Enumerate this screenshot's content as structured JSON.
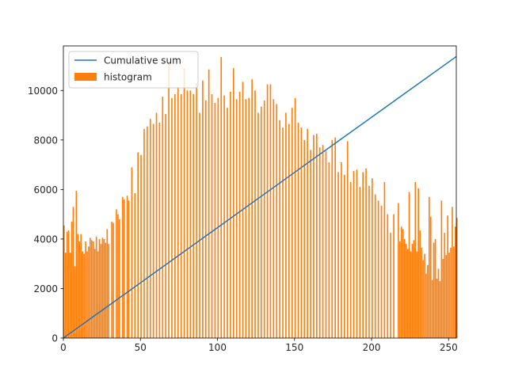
{
  "chart_data": {
    "type": "bar",
    "title": "",
    "xlabel": "",
    "ylabel": "",
    "xlim": [
      0,
      255
    ],
    "ylim": [
      0,
      11800
    ],
    "xticks": [
      0,
      50,
      100,
      150,
      200,
      250
    ],
    "yticks": [
      0,
      2000,
      4000,
      6000,
      8000,
      10000
    ],
    "legend_position": "top-left",
    "grid": false,
    "series": [
      {
        "name": "Cumulative sum",
        "type": "line",
        "color": "#1f77b4",
        "start": [
          0,
          0
        ],
        "end": [
          255,
          11370
        ]
      },
      {
        "name": "histogram",
        "type": "bar",
        "color": "#ff7f0e",
        "x_start": 0,
        "values": [
          4550,
          3450,
          4300,
          4350,
          3450,
          4700,
          5300,
          2900,
          5950,
          4200,
          3900,
          4200,
          3500,
          3400,
          3900,
          3500,
          3700,
          4050,
          3950,
          3900,
          3600,
          4100,
          3500,
          4000,
          3800,
          4050,
          4000,
          3850,
          4400,
          3800,
          0,
          4700,
          4650,
          0,
          5200,
          5000,
          4800,
          0,
          5700,
          5600,
          0,
          5750,
          5550,
          0,
          6900,
          0,
          5850,
          0,
          7500,
          0,
          7400,
          0,
          8450,
          0,
          8550,
          0,
          8850,
          0,
          8650,
          0,
          9100,
          0,
          8700,
          0,
          9750,
          0,
          9050,
          0,
          11150,
          0,
          9700,
          0,
          9850,
          0,
          10150,
          0,
          9850,
          0,
          10900,
          0,
          10000,
          0,
          10000,
          0,
          9850,
          0,
          10300,
          0,
          9100,
          0,
          10400,
          0,
          9600,
          0,
          10850,
          0,
          9850,
          0,
          9500,
          0,
          9700,
          0,
          11350,
          0,
          9800,
          0,
          9300,
          0,
          9950,
          0,
          10900,
          0,
          9650,
          0,
          9950,
          0,
          10350,
          0,
          9650,
          0,
          9700,
          0,
          10450,
          0,
          10000,
          0,
          9100,
          0,
          9350,
          0,
          9600,
          0,
          10250,
          0,
          10250,
          0,
          9650,
          0,
          9450,
          0,
          8800,
          0,
          8500,
          0,
          9100,
          0,
          8650,
          0,
          9300,
          0,
          9700,
          0,
          8700,
          0,
          8500,
          0,
          8000,
          0,
          8450,
          0,
          7600,
          0,
          8200,
          0,
          8250,
          0,
          7700,
          0,
          7800,
          0,
          7550,
          0,
          7100,
          0,
          8000,
          0,
          8100,
          0,
          6700,
          0,
          7100,
          0,
          6600,
          0,
          7950,
          0,
          6300,
          0,
          6750,
          0,
          6800,
          0,
          6100,
          0,
          6700,
          0,
          6850,
          0,
          6150,
          0,
          6450,
          0,
          5800,
          0,
          5550,
          0,
          5350,
          0,
          6300,
          0,
          5000,
          0,
          4250,
          0,
          5000,
          0,
          0,
          5450,
          3900,
          4500,
          4400,
          4000,
          3800,
          3600,
          5900,
          3500,
          3800,
          3950,
          6300,
          3500,
          6050,
          4350,
          3650,
          3150,
          3400,
          2600,
          2950,
          5700,
          4900,
          2350,
          3850,
          4000,
          2400,
          2800,
          2300,
          5550,
          3200,
          4250,
          3350,
          4950,
          3450,
          3650,
          5300,
          3700,
          4500,
          4850
        ]
      }
    ]
  }
}
